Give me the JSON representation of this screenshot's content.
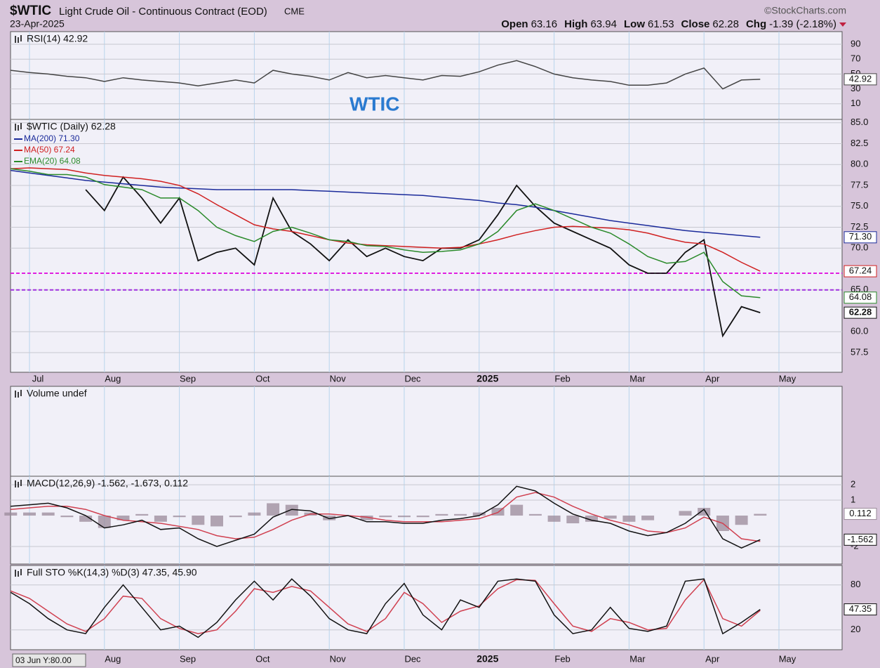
{
  "header": {
    "symbol": "$WTIC",
    "name": "Light Crude Oil - Continuous Contract (EOD)",
    "exchange": "CME",
    "copyright": "©StockCharts.com",
    "date": "23-Apr-2025",
    "quote": [
      {
        "label": "Open",
        "value": "63.16"
      },
      {
        "label": "High",
        "value": "63.94"
      },
      {
        "label": "Low",
        "value": "61.53"
      },
      {
        "label": "Close",
        "value": "62.28"
      },
      {
        "label": "Chg",
        "value": "-1.39 (-2.18%)"
      }
    ]
  },
  "crosshair": "03 Jun Y:80.00",
  "chart_data": [
    {
      "type": "line",
      "title": "RSI(14) 42.92",
      "annotation": "WTIC",
      "ylim": [
        -11,
        107
      ],
      "yticks": [
        90,
        70,
        50,
        30,
        10
      ],
      "series": [
        {
          "color": "#444444",
          "label": "42.92",
          "values": [
            55,
            52,
            50,
            47,
            45,
            40,
            45,
            42,
            40,
            38,
            34,
            38,
            42,
            38,
            55,
            50,
            47,
            42,
            52,
            45,
            48,
            45,
            42,
            48,
            47,
            53,
            62,
            68,
            60,
            50,
            45,
            42,
            40,
            35,
            35,
            38,
            50,
            58,
            30,
            42,
            42.92,
            null,
            null
          ]
        }
      ]
    },
    {
      "type": "line",
      "title": "$WTIC (Daily) 62.28",
      "ylim": [
        55.15,
        85.4
      ],
      "yticks": [
        {
          "value": 85,
          "label": "85.0"
        },
        82.5,
        {
          "value": 80,
          "label": "80.0"
        },
        77.5,
        {
          "value": 75,
          "label": "75.0"
        },
        72.5,
        {
          "value": 70,
          "label": "70.0"
        },
        {
          "value": 65,
          "label": "65.0"
        },
        {
          "value": 60,
          "label": "60.0"
        },
        57.5
      ],
      "categories": [
        null,
        "Jul",
        null,
        null,
        null,
        "Aug",
        null,
        null,
        null,
        "Sep",
        null,
        null,
        null,
        "Oct",
        null,
        null,
        null,
        "Nov",
        null,
        null,
        null,
        "Dec",
        null,
        null,
        null,
        "2025",
        null,
        null,
        null,
        "Feb",
        null,
        null,
        null,
        "Mar",
        null,
        null,
        null,
        "Apr",
        null,
        null,
        null,
        "May",
        null
      ],
      "hlines": [
        {
          "value": 67,
          "color": "#e020e0"
        },
        {
          "value": 65,
          "color": "#a030e0"
        }
      ],
      "series": [
        {
          "color": "#111111",
          "label": "62.28",
          "values": [
            null,
            null,
            null,
            null,
            77,
            74.5,
            78.5,
            76,
            73,
            76,
            68.5,
            69.5,
            70,
            68,
            76,
            72,
            70.5,
            68.5,
            71,
            69,
            70,
            69,
            68.5,
            70,
            70,
            71,
            74,
            77.5,
            75,
            73,
            72,
            71,
            70,
            68,
            67,
            67,
            69.5,
            71,
            59.5,
            63,
            62.28,
            null,
            null
          ]
        },
        {
          "name": "MA(200) 71.30",
          "color": "#1a2a9a",
          "label": "71.30",
          "values": [
            79.3,
            79.0,
            78.7,
            78.4,
            78.1,
            77.9,
            77.7,
            77.5,
            77.3,
            77.2,
            77.1,
            77.0,
            77.0,
            77.0,
            77.0,
            77.0,
            76.9,
            76.8,
            76.7,
            76.6,
            76.5,
            76.4,
            76.3,
            76.1,
            75.9,
            75.7,
            75.4,
            75.2,
            74.9,
            74.5,
            74.1,
            73.7,
            73.3,
            73.0,
            72.7,
            72.4,
            72.1,
            71.9,
            71.7,
            71.5,
            71.3,
            null,
            null
          ]
        },
        {
          "name": "MA(50) 67.24",
          "color": "#d02020",
          "label": "67.24",
          "values": [
            79.5,
            79.6,
            79.5,
            79.4,
            79.0,
            78.7,
            78.5,
            78.3,
            78.0,
            77.5,
            76.5,
            75.2,
            74.0,
            72.8,
            72.3,
            72.0,
            71.5,
            71.0,
            70.6,
            70.4,
            70.3,
            70.2,
            70.1,
            70.0,
            70.1,
            70.5,
            71.0,
            71.6,
            72.1,
            72.5,
            72.6,
            72.5,
            72.4,
            72.2,
            71.8,
            71.2,
            70.7,
            70.5,
            69.5,
            68.3,
            67.24,
            null,
            null
          ]
        },
        {
          "name": "EMA(20) 64.08",
          "color": "#2a8a2a",
          "label": "64.08",
          "values": [
            79.5,
            79.2,
            78.8,
            78.8,
            78.5,
            77.6,
            77.3,
            77.0,
            76.0,
            76.0,
            74.5,
            72.5,
            71.5,
            70.8,
            72.0,
            72.5,
            71.8,
            71.0,
            70.8,
            70.3,
            70.2,
            69.8,
            69.5,
            69.6,
            69.8,
            70.5,
            72.0,
            74.5,
            75.3,
            74.5,
            73.5,
            72.5,
            71.8,
            70.5,
            69.0,
            68.2,
            68.4,
            69.5,
            66.0,
            64.3,
            64.08,
            null,
            null
          ]
        }
      ]
    },
    {
      "type": "volume",
      "title": "Volume undef"
    },
    {
      "type": "line",
      "title": "MACD(12,26,9) -1.562, -1.673, 0.112",
      "ylim": [
        -3.14,
        2.55
      ],
      "yticks": [
        2,
        1,
        -2
      ],
      "series": [
        {
          "color": "#9a8a9a",
          "style": "histogram",
          "label": "0.112",
          "values": [
            0.2,
            0.2,
            0.2,
            -0.1,
            -0.4,
            -0.8,
            -0.3,
            0.1,
            -0.4,
            -0.1,
            -0.6,
            -0.7,
            -0.1,
            0.2,
            0.8,
            0.7,
            0.2,
            -0.3,
            0,
            -0.3,
            -0.1,
            -0.1,
            -0.1,
            0.1,
            0.1,
            0.2,
            0.5,
            0.7,
            0.1,
            -0.4,
            -0.5,
            -0.4,
            -0.2,
            -0.4,
            -0.3,
            0,
            0.3,
            0.5,
            -1.0,
            -0.6,
            0.112,
            null,
            null
          ]
        },
        {
          "color": "#d04050",
          "values": [
            0.4,
            0.5,
            0.6,
            0.6,
            0.4,
            0.0,
            -0.3,
            -0.4,
            -0.5,
            -0.7,
            -0.9,
            -1.3,
            -1.5,
            -1.4,
            -0.9,
            -0.3,
            0.1,
            0.1,
            0.0,
            -0.1,
            -0.3,
            -0.4,
            -0.4,
            -0.4,
            -0.3,
            -0.2,
            0.2,
            1.2,
            1.5,
            1.2,
            0.6,
            0.1,
            -0.3,
            -0.6,
            -1.0,
            -1.1,
            -0.8,
            -0.1,
            -0.5,
            -1.5,
            -1.673,
            null,
            null
          ]
        },
        {
          "color": "#111111",
          "label": "-1.562",
          "values": [
            0.6,
            0.7,
            0.8,
            0.5,
            0,
            -0.8,
            -0.6,
            -0.3,
            -0.9,
            -0.8,
            -1.5,
            -2.0,
            -1.6,
            -1.2,
            -0.1,
            0.4,
            0.3,
            -0.2,
            0.0,
            -0.4,
            -0.4,
            -0.5,
            -0.5,
            -0.3,
            -0.2,
            0.0,
            0.7,
            1.9,
            1.6,
            0.8,
            0.1,
            -0.3,
            -0.5,
            -1.0,
            -1.3,
            -1.1,
            -0.5,
            0.4,
            -1.5,
            -2.1,
            -1.562,
            null,
            null
          ]
        }
      ]
    },
    {
      "type": "line",
      "title": "Full STO %K(14,3) %D(3) 47.35, 45.90",
      "ylim": [
        -6.5,
        106
      ],
      "yticks": [
        80,
        20
      ],
      "categories": [
        null,
        null,
        null,
        null,
        null,
        "Aug",
        null,
        null,
        null,
        "Sep",
        null,
        null,
        null,
        "Oct",
        null,
        null,
        null,
        "Nov",
        null,
        null,
        null,
        "Dec",
        null,
        null,
        null,
        "2025",
        null,
        null,
        null,
        "Feb",
        null,
        null,
        null,
        "Mar",
        null,
        null,
        null,
        "Apr",
        null,
        null,
        null,
        "May",
        null
      ],
      "series": [
        {
          "color": "#d04050",
          "values": [
            72,
            62,
            45,
            28,
            18,
            35,
            65,
            62,
            35,
            22,
            15,
            20,
            45,
            75,
            70,
            78,
            72,
            50,
            28,
            18,
            35,
            70,
            55,
            30,
            45,
            52,
            75,
            87,
            86,
            55,
            25,
            18,
            35,
            30,
            20,
            22,
            60,
            87,
            35,
            25,
            45.9,
            null,
            null
          ]
        },
        {
          "color": "#111111",
          "label": "47.35",
          "values": [
            70,
            55,
            35,
            20,
            15,
            50,
            80,
            50,
            20,
            25,
            10,
            30,
            60,
            85,
            60,
            88,
            65,
            35,
            20,
            15,
            55,
            82,
            40,
            20,
            60,
            50,
            85,
            88,
            85,
            40,
            15,
            20,
            50,
            22,
            18,
            25,
            85,
            88,
            15,
            30,
            47.35,
            null,
            null
          ]
        }
      ]
    }
  ]
}
